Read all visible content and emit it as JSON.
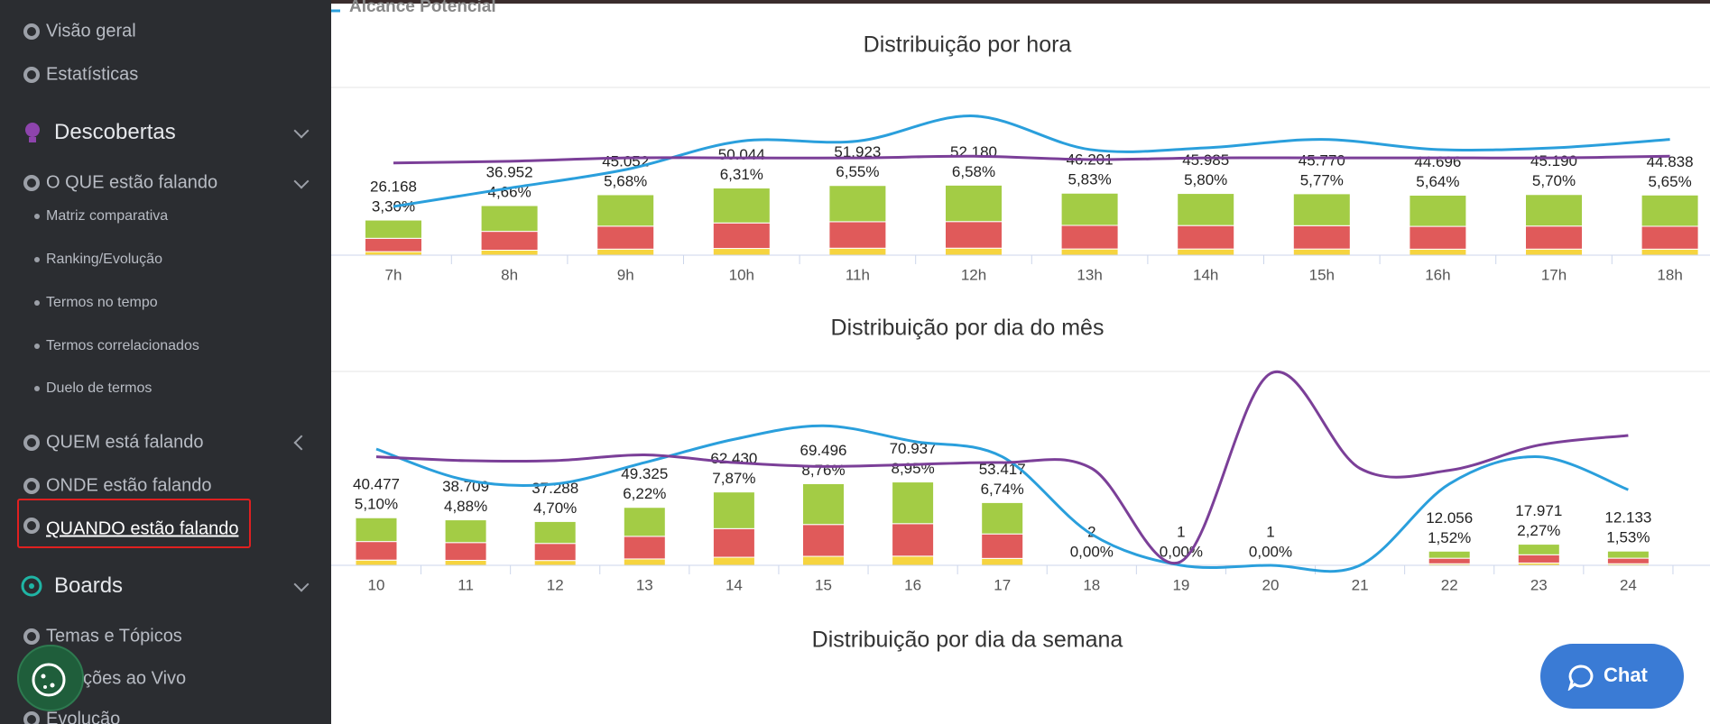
{
  "sidebar": {
    "items": [
      "Visão geral",
      "Estatísticas",
      "Descobertas",
      "O QUE estão falando",
      "Matriz comparativa",
      "Ranking/Evolução",
      "Termos no tempo",
      "Termos correlacionados",
      "Duelo de termos",
      "QUEM está falando",
      "ONDE estão falando",
      "QUANDO estão falando",
      "Boards",
      "Temas e Tópicos",
      "ções ao Vivo",
      "Evolução"
    ]
  },
  "chat_button": {
    "label": "Chat"
  },
  "chart_data": [
    {
      "type": "bar",
      "title": "Distribuição por hora",
      "categories": [
        "7h",
        "8h",
        "9h",
        "10h",
        "11h",
        "12h",
        "13h",
        "14h",
        "15h",
        "16h",
        "17h",
        "18h"
      ],
      "values": [
        26168,
        36952,
        45052,
        50044,
        51923,
        52180,
        46201,
        45985,
        45770,
        44696,
        45190,
        44838
      ],
      "value_labels": [
        "26.168",
        "36.952",
        "45.052",
        "50.044",
        "51.923",
        "52.180",
        "46.201",
        "45.985",
        "45.770",
        "44.696",
        "45.190",
        "44.838"
      ],
      "percent_labels": [
        "3,30%",
        "4,66%",
        "5,68%",
        "6,31%",
        "6,55%",
        "6,58%",
        "5,83%",
        "5,80%",
        "5,77%",
        "5,64%",
        "5,70%",
        "5,65%"
      ],
      "ylim": [
        0,
        125000
      ],
      "y2lim": [
        0,
        100
      ],
      "series": [
        {
          "color": "#f6d43f",
          "values": [
            2617,
            3695,
            4505,
            5004,
            5192,
            5218,
            4620,
            4599,
            4577,
            4470,
            4519,
            4484
          ]
        },
        {
          "color": "#e05a5a",
          "values": [
            9944,
            14042,
            17120,
            19017,
            19731,
            19828,
            17556,
            17474,
            17393,
            16984,
            17172,
            17038
          ]
        },
        {
          "color": "#a3cc45",
          "values": [
            13607,
            19215,
            23427,
            26023,
            27000,
            27134,
            24025,
            23912,
            23800,
            23242,
            23499,
            23316
          ]
        },
        {
          "name": "Alcance Potencial",
          "color": "#2a9fdc",
          "axis": "y2",
          "values": [
            29,
            40,
            51,
            68,
            68,
            83,
            63,
            64,
            69,
            63,
            64,
            69
          ]
        },
        {
          "color": "#7b3f98",
          "axis": "y2",
          "values": [
            55,
            56,
            58,
            58,
            58,
            59,
            57,
            58,
            58,
            58,
            58,
            59
          ]
        }
      ]
    },
    {
      "type": "bar",
      "title": "Distribuição por dia do mês",
      "categories": [
        "10",
        "11",
        "12",
        "13",
        "14",
        "15",
        "16",
        "17",
        "18",
        "19",
        "20",
        "21",
        "22",
        "23",
        "24"
      ],
      "values": [
        40477,
        38709,
        37288,
        49325,
        62430,
        69496,
        70937,
        53417,
        2,
        1,
        1,
        null,
        12056,
        17971,
        12133
      ],
      "value_labels": [
        "40.477",
        "38.709",
        "37.288",
        "49.325",
        "62.430",
        "69.496",
        "70.937",
        "53.417",
        "2",
        "1",
        "1",
        null,
        "12.056",
        "17.971",
        "12.133"
      ],
      "percent_labels": [
        "5,10%",
        "4,88%",
        "4,70%",
        "6,22%",
        "7,87%",
        "8,76%",
        "8,95%",
        "6,74%",
        "0,00%",
        "0,00%",
        "0,00%",
        null,
        "1,52%",
        "2,27%",
        "1,53%"
      ],
      "ylim": [
        0,
        165000
      ],
      "y2lim": [
        0,
        100
      ],
      "series": [
        {
          "color": "#f6d43f",
          "values": [
            4452,
            4258,
            4102,
            5426,
            6867,
            7645,
            7803,
            5876,
            0,
            0,
            0,
            null,
            1326,
            1977,
            1335
          ]
        },
        {
          "color": "#e05a5a",
          "values": [
            15786,
            15097,
            14542,
            19237,
            24348,
            27103,
            27665,
            20833,
            1,
            0,
            0,
            null,
            4702,
            7009,
            4732
          ]
        },
        {
          "color": "#a3cc45",
          "values": [
            20239,
            19354,
            18644,
            24662,
            31215,
            34748,
            35469,
            26708,
            1,
            1,
            1,
            null,
            6028,
            8985,
            6066
          ]
        },
        {
          "color": "#2a9fdc",
          "axis": "y2",
          "values": [
            60,
            44,
            42,
            53,
            65,
            72,
            64,
            56,
            16,
            0,
            0,
            0,
            42,
            56,
            39
          ]
        },
        {
          "color": "#7b3f98",
          "axis": "y2",
          "values": [
            56,
            54,
            54,
            57,
            53,
            51,
            52,
            53,
            50,
            2,
            99,
            50,
            49,
            62,
            67
          ]
        }
      ]
    },
    {
      "type": "bar",
      "title": "Distribuição por dia da semana"
    }
  ]
}
